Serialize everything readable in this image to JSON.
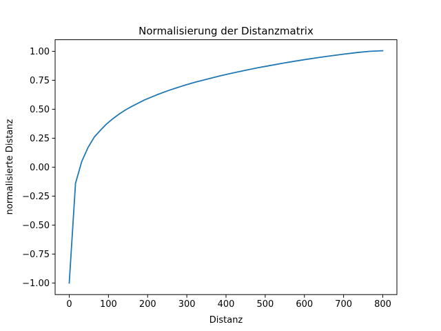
{
  "chart_data": {
    "type": "line",
    "title": "Normalisierung der Distanzmatrix",
    "xlabel": "Distanz",
    "ylabel": "normalisierte Distanz",
    "xlim": [
      -36,
      836
    ],
    "ylim": [
      -1.1,
      1.1
    ],
    "xticks": [
      0,
      100,
      200,
      300,
      400,
      500,
      600,
      700,
      800
    ],
    "yticks": [
      -1.0,
      -0.75,
      -0.5,
      -0.25,
      0.0,
      0.25,
      0.5,
      0.75,
      1.0
    ],
    "xtick_labels": [
      "0",
      "100",
      "200",
      "300",
      "400",
      "500",
      "600",
      "700",
      "800"
    ],
    "ytick_labels": [
      "−1.00",
      "−0.75",
      "−0.50",
      "−0.25",
      "0.00",
      "0.25",
      "0.50",
      "0.75",
      "1.00"
    ],
    "grid": false,
    "series": [
      {
        "color": "#1f77b4",
        "x": [
          0,
          16,
          32,
          48,
          64,
          80,
          96,
          112,
          128,
          144,
          160,
          192,
          224,
          256,
          288,
          320,
          352,
          384,
          416,
          448,
          480,
          512,
          544,
          576,
          608,
          640,
          672,
          704,
          736,
          768,
          800
        ],
        "y": [
          -1.0,
          -0.14,
          0.05,
          0.17,
          0.26,
          0.32,
          0.375,
          0.42,
          0.46,
          0.495,
          0.525,
          0.58,
          0.625,
          0.665,
          0.7,
          0.732,
          0.76,
          0.787,
          0.812,
          0.835,
          0.857,
          0.877,
          0.897,
          0.915,
          0.932,
          0.948,
          0.963,
          0.977,
          0.99,
          1.0,
          1.005
        ]
      }
    ]
  }
}
